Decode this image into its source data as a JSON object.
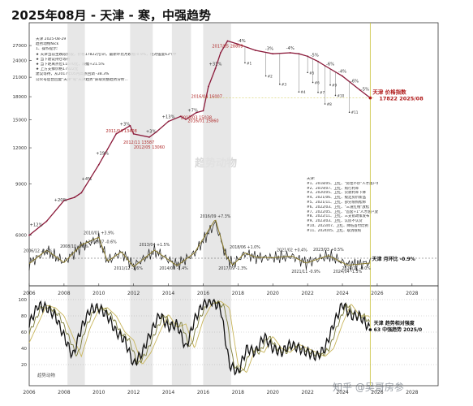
{
  "title": "2025年08月 - 天津 - 寒，中强趋势",
  "watermark": "知乎 @吴哥房参",
  "brand_small": "趋势动物",
  "center_watermark": "趋势动物",
  "notes": {
    "lines": [
      "天津  2025-08-29",
      "趋势动物Nick",
      "1、操作提示:",
      "★ 天津当前主跌段阶段，价格17822元/㎡，最新环比月跌幅-0.9%，相对强度63\"(中",
      "★ 当下建议持仓等待",
      "★ 当下距离点位11670元，跌幅+21.5%",
      "★ 上方支撑价格17822元",
      "建议等待，从2017年05月高点回调 -38.3%",
      "公众号后台回复\"天津\"或\"天津趋势\"获取完整趋势分析..."
    ]
  },
  "legend_box": {
    "lines": [
      "天津:",
      "#1、2018/05、卫红、\"房住不炒\"人才落户券商及已达过",
      "#2、2019/07、卫红、购行利率",
      "#3、2020/05、卫红、贷款利率下降",
      "#4、2021/06、卫红、规定房价新品",
      "#5、2021/11、卫红、部分限购松绑",
      "#6、2022/03、卫红、\"三道红线\"放松",
      "#7、2022/05、卫红、\"首套+1\"人才落户放开",
      "#8、2022/11、卫红、三支箭政策发布",
      "#9、2023/03、卫红、认房不认贷",
      "#10、2023/07、卫红、降低首付比例",
      "#11、2024/05、卫红、取消限购"
    ]
  },
  "colors": {
    "price_line": "#8b1a3a",
    "mom_line": "#1a1a1a",
    "mom_smooth": "#8a7a2a",
    "rs_main": "#111111",
    "rs_olive": "#7a7a3a",
    "rs_gold": "#c8b55a",
    "shade": "#e3e3e3",
    "annot_green": "#2e7d5b",
    "annot_red": "#b02a2a",
    "current_red": "#b01a1a"
  },
  "labels": {
    "price_series": "天津 价格指数",
    "price_current": "17822 2025/08",
    "mom_series": "天津 月环比 -0.9%",
    "rs_series": "天津 趋势相对强度",
    "rs_current": "63 中强趋势 2025/0"
  },
  "chart_data": [
    {
      "type": "line",
      "name": "price",
      "yscale": "log",
      "yticks": [
        6000,
        9000,
        12000,
        15000,
        18000,
        21000,
        24000,
        27000
      ],
      "ylim": [
        5000,
        29000
      ],
      "xlim": [
        2006,
        2029.5
      ],
      "x": [
        2006.0,
        2007.0,
        2008.0,
        2008.6,
        2009.0,
        2010.0,
        2011.0,
        2011.8,
        2012.0,
        2012.9,
        2013.3,
        2014.0,
        2014.7,
        2015.0,
        2015.6,
        2016.0,
        2016.3,
        2016.7,
        2017.0,
        2017.4,
        2018.0,
        2019.0,
        2020.0,
        2021.0,
        2021.5,
        2022.0,
        2022.6,
        2023.0,
        2024.0,
        2025.0,
        2025.6
      ],
      "values": [
        6000,
        6700,
        7900,
        8100,
        8400,
        10500,
        13400,
        14300,
        13400,
        13060,
        13600,
        14800,
        15400,
        15038,
        15860,
        16100,
        19500,
        22500,
        25500,
        28000,
        27300,
        26000,
        25300,
        25500,
        25300,
        24800,
        23800,
        23000,
        21200,
        19000,
        17822
      ],
      "annotations": [
        {
          "x": 2006.4,
          "label": "+12%"
        },
        {
          "x": 2007.8,
          "label": "+20%"
        },
        {
          "x": 2009.3,
          "label": "+4%"
        },
        {
          "x": 2010.2,
          "label": "+19%"
        },
        {
          "x": 2011.5,
          "label": "+3%"
        },
        {
          "x": 2013.0,
          "label": "+3%"
        },
        {
          "x": 2014.0,
          "label": "+13%"
        },
        {
          "x": 2015.4,
          "label": "+7%"
        },
        {
          "x": 2016.7,
          "label": "+31%"
        },
        {
          "x": 2018.2,
          "label": "-4%"
        },
        {
          "x": 2019.8,
          "label": "-3%"
        },
        {
          "x": 2021.0,
          "label": "-4%"
        },
        {
          "x": 2022.4,
          "label": "-5%"
        },
        {
          "x": 2023.3,
          "label": "-6%"
        },
        {
          "x": 2024.0,
          "label": "-4%"
        },
        {
          "x": 2024.7,
          "label": "-6%"
        },
        {
          "x": 2025.3,
          "label": "-5%"
        }
      ],
      "events": [
        {
          "x": 2011.3,
          "label": "2011/04 13408"
        },
        {
          "x": 2012.9,
          "label": "2012/05 13060"
        },
        {
          "x": 2015.6,
          "label": "2015/03 15038"
        },
        {
          "x": 2016.2,
          "label": "2016/04 16007"
        },
        {
          "x": 2017.4,
          "label": "2017/05 28809"
        },
        {
          "x": 2016.0,
          "label": "2016/01 15860"
        },
        {
          "x": 2012.3,
          "label": "2012/11 13587"
        }
      ],
      "markers_hashtags": [
        "#1",
        "#2",
        "#3",
        "#4",
        "#5",
        "#6",
        "#7",
        "#8",
        "#9",
        "#10",
        "#11"
      ],
      "marker_x": [
        2018.4,
        2019.6,
        2020.4,
        2021.5,
        2022.0,
        2022.3,
        2022.6,
        2023.0,
        2023.3,
        2023.6,
        2024.4
      ]
    },
    {
      "type": "line",
      "name": "mom",
      "yticks_label": [],
      "annotations": [
        {
          "x": 2006.5,
          "label": "2006/12 -2.6%"
        },
        {
          "x": 2008.6,
          "label": "2008/10 -0.8%"
        },
        {
          "x": 2010.0,
          "label": "2010/01 +3.9%"
        },
        {
          "x": 2010.2,
          "label": "2010/07 -0.6%"
        },
        {
          "x": 2011.7,
          "label": "2011/12 -1.6%"
        },
        {
          "x": 2013.2,
          "label": "2013/04 +1.5%"
        },
        {
          "x": 2014.3,
          "label": "2014/08 -1.4%"
        },
        {
          "x": 2016.7,
          "label": "2016/09 +7.3%"
        },
        {
          "x": 2017.7,
          "label": "2017/09 -1.3%"
        },
        {
          "x": 2018.4,
          "label": "2018/06 +1.0%"
        },
        {
          "x": 2021.1,
          "label": "2021/02 +0.4%"
        },
        {
          "x": 2021.9,
          "label": "2021/11 -0.9%"
        },
        {
          "x": 2023.2,
          "label": "2023/03 +0.5%"
        },
        {
          "x": 2024.3,
          "label": "2024/04 -1.3%"
        },
        {
          "x": 2024.8,
          "label": "2024/11 -0.0%"
        }
      ]
    },
    {
      "type": "line",
      "name": "relative_strength",
      "yticks": [
        20,
        40,
        60,
        80,
        100
      ],
      "ylim": [
        0,
        105
      ],
      "x": [
        2006.0,
        2006.5,
        2007.0,
        2007.5,
        2008.0,
        2008.5,
        2009.0,
        2009.5,
        2010.0,
        2010.5,
        2011.0,
        2011.5,
        2012.0,
        2012.5,
        2013.0,
        2013.5,
        2014.0,
        2014.5,
        2015.0,
        2015.5,
        2016.0,
        2016.5,
        2017.0,
        2017.5,
        2018.0,
        2018.5,
        2019.0,
        2019.5,
        2020.0,
        2020.5,
        2021.0,
        2021.5,
        2022.0,
        2022.5,
        2023.0,
        2023.5,
        2024.0,
        2024.5,
        2025.0,
        2025.6
      ],
      "values": [
        70,
        93,
        90,
        80,
        55,
        30,
        65,
        88,
        90,
        80,
        60,
        50,
        20,
        35,
        60,
        82,
        66,
        70,
        40,
        75,
        95,
        98,
        90,
        20,
        10,
        40,
        35,
        55,
        40,
        35,
        45,
        40,
        35,
        30,
        40,
        70,
        95,
        80,
        80,
        63
      ]
    }
  ],
  "xaxis_ticks": [
    "2006",
    "2008",
    "2010",
    "2012",
    "2014",
    "2016",
    "2018",
    "2020",
    "2022",
    "2024",
    "2026",
    "2028"
  ]
}
